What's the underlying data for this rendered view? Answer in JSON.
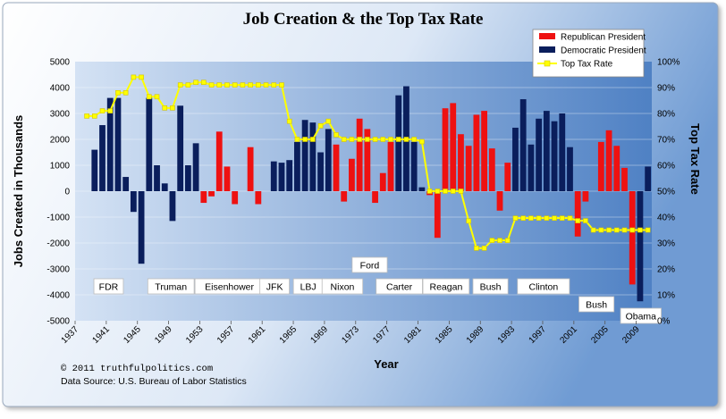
{
  "chart_data": {
    "type": "bar",
    "title": "Job Creation & the Top Tax Rate",
    "xlabel": "Year",
    "ylabel": "Jobs Created in Thousands",
    "y2label": "Top Tax Rate",
    "ylim": [
      -5000,
      5000
    ],
    "y2lim": [
      0,
      100
    ],
    "xlim": [
      1937,
      2011
    ],
    "yticks": [
      "5000",
      "4000",
      "3000",
      "2000",
      "1000",
      "0",
      "-1000",
      "-2000",
      "-3000",
      "-4000",
      "-5000"
    ],
    "y2ticks": [
      "100%",
      "90%",
      "80%",
      "70%",
      "60%",
      "50%",
      "40%",
      "30%",
      "20%",
      "10%",
      "0%"
    ],
    "xticks": [
      "1937",
      "1941",
      "1945",
      "1949",
      "1953",
      "1957",
      "1961",
      "1965",
      "1969",
      "1973",
      "1977",
      "1981",
      "1985",
      "1989",
      "1993",
      "1997",
      "2001",
      "2005",
      "2009"
    ],
    "colors": {
      "republican": "#ee1111",
      "democratic": "#0a1e5c",
      "tax": "#ffff00",
      "tax_marker": "#ffff00"
    },
    "legend": {
      "placement": "top-right",
      "items": [
        {
          "label": "Republican President",
          "color": "#ee1111"
        },
        {
          "label": "Democratic President",
          "color": "#0a1e5c"
        },
        {
          "label": "Top Tax Rate",
          "color": "#ffff00"
        }
      ]
    },
    "jobs": [
      {
        "year": 1939,
        "value": 1600,
        "party": "D"
      },
      {
        "year": 1940,
        "value": 2550,
        "party": "D"
      },
      {
        "year": 1941,
        "value": 3600,
        "party": "D"
      },
      {
        "year": 1942,
        "value": 3600,
        "party": "D"
      },
      {
        "year": 1943,
        "value": 550,
        "party": "D"
      },
      {
        "year": 1944,
        "value": -800,
        "party": "D"
      },
      {
        "year": 1945,
        "value": -2800,
        "party": "D"
      },
      {
        "year": 1946,
        "value": 3600,
        "party": "D"
      },
      {
        "year": 1947,
        "value": 1000,
        "party": "D"
      },
      {
        "year": 1948,
        "value": 300,
        "party": "D"
      },
      {
        "year": 1949,
        "value": -1150,
        "party": "D"
      },
      {
        "year": 1950,
        "value": 3300,
        "party": "D"
      },
      {
        "year": 1951,
        "value": 1000,
        "party": "D"
      },
      {
        "year": 1952,
        "value": 1850,
        "party": "D"
      },
      {
        "year": 1953,
        "value": -450,
        "party": "R"
      },
      {
        "year": 1954,
        "value": -200,
        "party": "R"
      },
      {
        "year": 1955,
        "value": 2300,
        "party": "R"
      },
      {
        "year": 1956,
        "value": 950,
        "party": "R"
      },
      {
        "year": 1957,
        "value": -500,
        "party": "R"
      },
      {
        "year": 1958,
        "value": 0,
        "party": "R"
      },
      {
        "year": 1959,
        "value": 1700,
        "party": "R"
      },
      {
        "year": 1960,
        "value": -500,
        "party": "R"
      },
      {
        "year": 1961,
        "value": 0,
        "party": "D"
      },
      {
        "year": 1962,
        "value": 1150,
        "party": "D"
      },
      {
        "year": 1963,
        "value": 1100,
        "party": "D"
      },
      {
        "year": 1964,
        "value": 1200,
        "party": "D"
      },
      {
        "year": 1965,
        "value": 1900,
        "party": "D"
      },
      {
        "year": 1966,
        "value": 2750,
        "party": "D"
      },
      {
        "year": 1967,
        "value": 2650,
        "party": "D"
      },
      {
        "year": 1968,
        "value": 1500,
        "party": "D"
      },
      {
        "year": 1969,
        "value": 2400,
        "party": "D"
      },
      {
        "year": 1970,
        "value": 1800,
        "party": "R"
      },
      {
        "year": 1971,
        "value": -400,
        "party": "R"
      },
      {
        "year": 1972,
        "value": 1250,
        "party": "R"
      },
      {
        "year": 1973,
        "value": 2800,
        "party": "R"
      },
      {
        "year": 1974,
        "value": 2400,
        "party": "R"
      },
      {
        "year": 1975,
        "value": -450,
        "party": "R"
      },
      {
        "year": 1976,
        "value": 700,
        "party": "R"
      },
      {
        "year": 1977,
        "value": 1900,
        "party": "R"
      },
      {
        "year": 1978,
        "value": 3700,
        "party": "D"
      },
      {
        "year": 1979,
        "value": 4050,
        "party": "D"
      },
      {
        "year": 1980,
        "value": 1900,
        "party": "D"
      },
      {
        "year": 1981,
        "value": 150,
        "party": "D"
      },
      {
        "year": 1982,
        "value": -150,
        "party": "R"
      },
      {
        "year": 1983,
        "value": -1800,
        "party": "R"
      },
      {
        "year": 1984,
        "value": 3200,
        "party": "R"
      },
      {
        "year": 1985,
        "value": 3400,
        "party": "R"
      },
      {
        "year": 1986,
        "value": 2200,
        "party": "R"
      },
      {
        "year": 1987,
        "value": 1750,
        "party": "R"
      },
      {
        "year": 1988,
        "value": 2950,
        "party": "R"
      },
      {
        "year": 1989,
        "value": 3100,
        "party": "R"
      },
      {
        "year": 1990,
        "value": 1650,
        "party": "R"
      },
      {
        "year": 1991,
        "value": -750,
        "party": "R"
      },
      {
        "year": 1992,
        "value": 1100,
        "party": "R"
      },
      {
        "year": 1993,
        "value": 2450,
        "party": "D"
      },
      {
        "year": 1994,
        "value": 3550,
        "party": "D"
      },
      {
        "year": 1995,
        "value": 1800,
        "party": "D"
      },
      {
        "year": 1996,
        "value": 2800,
        "party": "D"
      },
      {
        "year": 1997,
        "value": 3100,
        "party": "D"
      },
      {
        "year": 1998,
        "value": 2700,
        "party": "D"
      },
      {
        "year": 1999,
        "value": 3000,
        "party": "D"
      },
      {
        "year": 2000,
        "value": 1700,
        "party": "D"
      },
      {
        "year": 2001,
        "value": -1750,
        "party": "R"
      },
      {
        "year": 2002,
        "value": -400,
        "party": "R"
      },
      {
        "year": 2003,
        "value": 0,
        "party": "R"
      },
      {
        "year": 2004,
        "value": 1900,
        "party": "R"
      },
      {
        "year": 2005,
        "value": 2350,
        "party": "R"
      },
      {
        "year": 2006,
        "value": 1750,
        "party": "R"
      },
      {
        "year": 2007,
        "value": 900,
        "party": "R"
      },
      {
        "year": 2008,
        "value": -3600,
        "party": "R"
      },
      {
        "year": 2009,
        "value": -4250,
        "party": "D"
      },
      {
        "year": 2010,
        "value": 950,
        "party": "D"
      }
    ],
    "tax_rate": [
      {
        "year": 1938,
        "value": 79
      },
      {
        "year": 1939,
        "value": 79
      },
      {
        "year": 1940,
        "value": 81
      },
      {
        "year": 1941,
        "value": 81
      },
      {
        "year": 1942,
        "value": 88
      },
      {
        "year": 1943,
        "value": 88
      },
      {
        "year": 1944,
        "value": 94
      },
      {
        "year": 1945,
        "value": 94
      },
      {
        "year": 1946,
        "value": 86.45
      },
      {
        "year": 1947,
        "value": 86.45
      },
      {
        "year": 1948,
        "value": 82.13
      },
      {
        "year": 1949,
        "value": 82.13
      },
      {
        "year": 1950,
        "value": 91
      },
      {
        "year": 1951,
        "value": 91
      },
      {
        "year": 1952,
        "value": 92
      },
      {
        "year": 1953,
        "value": 92
      },
      {
        "year": 1954,
        "value": 91
      },
      {
        "year": 1955,
        "value": 91
      },
      {
        "year": 1956,
        "value": 91
      },
      {
        "year": 1957,
        "value": 91
      },
      {
        "year": 1958,
        "value": 91
      },
      {
        "year": 1959,
        "value": 91
      },
      {
        "year": 1960,
        "value": 91
      },
      {
        "year": 1961,
        "value": 91
      },
      {
        "year": 1962,
        "value": 91
      },
      {
        "year": 1963,
        "value": 91
      },
      {
        "year": 1964,
        "value": 77
      },
      {
        "year": 1965,
        "value": 70
      },
      {
        "year": 1966,
        "value": 70
      },
      {
        "year": 1967,
        "value": 70
      },
      {
        "year": 1968,
        "value": 75.25
      },
      {
        "year": 1969,
        "value": 77
      },
      {
        "year": 1970,
        "value": 71.75
      },
      {
        "year": 1971,
        "value": 70
      },
      {
        "year": 1972,
        "value": 70
      },
      {
        "year": 1973,
        "value": 70
      },
      {
        "year": 1974,
        "value": 70
      },
      {
        "year": 1975,
        "value": 70
      },
      {
        "year": 1976,
        "value": 70
      },
      {
        "year": 1977,
        "value": 70
      },
      {
        "year": 1978,
        "value": 70
      },
      {
        "year": 1979,
        "value": 70
      },
      {
        "year": 1980,
        "value": 70
      },
      {
        "year": 1981,
        "value": 69.13
      },
      {
        "year": 1982,
        "value": 50
      },
      {
        "year": 1983,
        "value": 50
      },
      {
        "year": 1984,
        "value": 50
      },
      {
        "year": 1985,
        "value": 50
      },
      {
        "year": 1986,
        "value": 50
      },
      {
        "year": 1987,
        "value": 38.5
      },
      {
        "year": 1988,
        "value": 28
      },
      {
        "year": 1989,
        "value": 28
      },
      {
        "year": 1990,
        "value": 31
      },
      {
        "year": 1991,
        "value": 31
      },
      {
        "year": 1992,
        "value": 31
      },
      {
        "year": 1993,
        "value": 39.6
      },
      {
        "year": 1994,
        "value": 39.6
      },
      {
        "year": 1995,
        "value": 39.6
      },
      {
        "year": 1996,
        "value": 39.6
      },
      {
        "year": 1997,
        "value": 39.6
      },
      {
        "year": 1998,
        "value": 39.6
      },
      {
        "year": 1999,
        "value": 39.6
      },
      {
        "year": 2000,
        "value": 39.6
      },
      {
        "year": 2001,
        "value": 38.6
      },
      {
        "year": 2002,
        "value": 38.6
      },
      {
        "year": 2003,
        "value": 35
      },
      {
        "year": 2004,
        "value": 35
      },
      {
        "year": 2005,
        "value": 35
      },
      {
        "year": 2006,
        "value": 35
      },
      {
        "year": 2007,
        "value": 35
      },
      {
        "year": 2008,
        "value": 35
      },
      {
        "year": 2009,
        "value": 35
      },
      {
        "year": 2010,
        "value": 35
      }
    ],
    "presidents": [
      {
        "name": "FDR",
        "year": 1941.3,
        "row": 0
      },
      {
        "name": "Truman",
        "year": 1949.3,
        "row": 0
      },
      {
        "name": "Eisenhower",
        "year": 1956.8,
        "row": 0
      },
      {
        "name": "JFK",
        "year": 1962.6,
        "row": 0
      },
      {
        "name": "LBJ",
        "year": 1966.9,
        "row": 0
      },
      {
        "name": "Nixon",
        "year": 1971.3,
        "row": 0
      },
      {
        "name": "Ford",
        "year": 1974.8,
        "row": -1
      },
      {
        "name": "Carter",
        "year": 1978.6,
        "row": 0
      },
      {
        "name": "Reagan",
        "year": 1984.6,
        "row": 0
      },
      {
        "name": "Bush",
        "year": 1990.3,
        "row": 0
      },
      {
        "name": "Clinton",
        "year": 1997.1,
        "row": 0
      },
      {
        "name": "Bush",
        "year": 2003.9,
        "row": 1
      },
      {
        "name": "Obama",
        "year": 2009.6,
        "row": 2
      }
    ]
  },
  "footer": {
    "copyright": "© 2011  truthfulpolitics.com",
    "source": "Data Source:  U.S. Bureau of Labor Statistics"
  }
}
